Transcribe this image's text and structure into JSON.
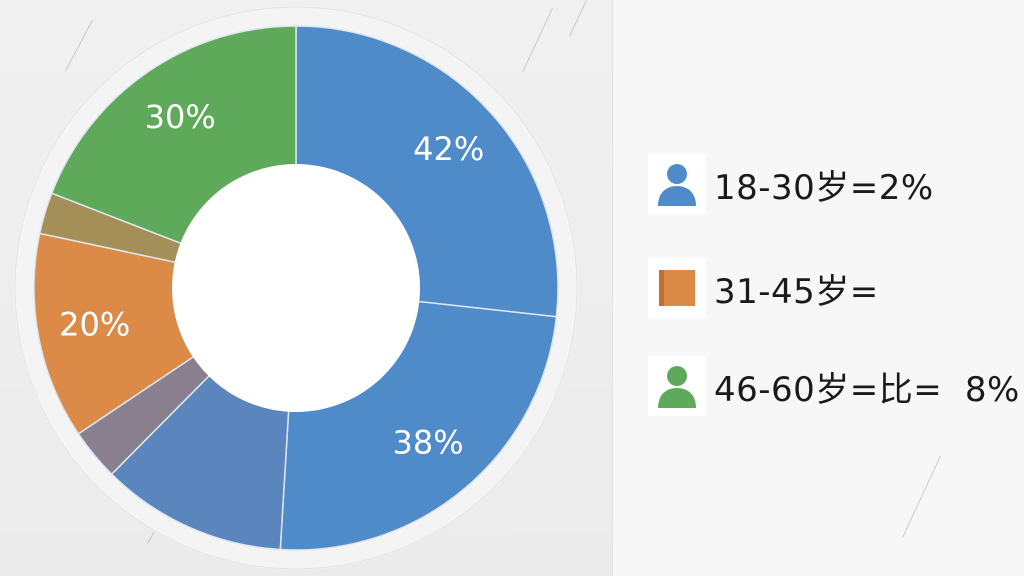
{
  "chart_data": {
    "type": "pie",
    "donut": true,
    "slices": [
      {
        "label": "42%",
        "value": 42,
        "color": "#4f8bc9"
      },
      {
        "label": "38%",
        "value": 38,
        "color": "#4f8bc9"
      },
      {
        "label": "",
        "value": 18,
        "color": "#5b85bd"
      },
      {
        "label": "",
        "value": 5,
        "color": "#8a7f8f"
      },
      {
        "label": "20%",
        "value": 20,
        "color": "#dc8a48"
      },
      {
        "label": "",
        "value": 4,
        "color": "#a58f58"
      },
      {
        "label": "30%",
        "value": 30,
        "color": "#5faa5a"
      }
    ]
  },
  "legend": {
    "items": [
      {
        "label": "18-30岁=2%",
        "icon": "person-icon",
        "color": "#4f8bc9"
      },
      {
        "label": "31-45岁=",
        "icon": "square-icon",
        "color": "#dc8a48"
      },
      {
        "label": "46-60岁=比=  8%",
        "icon": "person-icon",
        "color": "#5faa5a"
      }
    ]
  }
}
